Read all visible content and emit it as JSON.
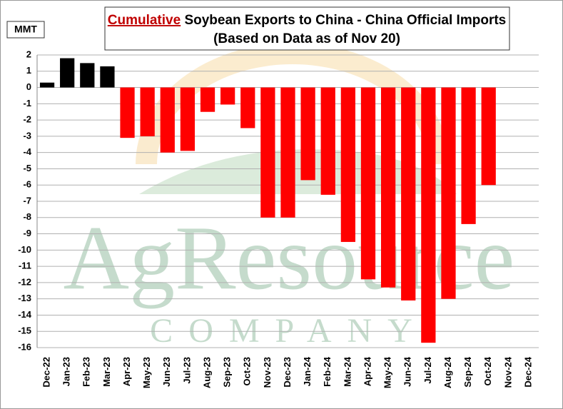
{
  "chart_data": {
    "type": "bar",
    "title_highlight": "Cumulative",
    "title": "Soybean Exports to China - China Official Imports",
    "subtitle": "(Based on Data as of Nov 20)",
    "y_label": "MMT",
    "watermark": "AgResource",
    "watermark_sub": "COMPANY",
    "categories": [
      "Dec-22",
      "Jan-23",
      "Feb-23",
      "Mar-23",
      "Apr-23",
      "May-23",
      "Jun-23",
      "Jul-23",
      "Aug-23",
      "Sep-23",
      "Oct-23",
      "Nov-23",
      "Dec-23",
      "Jan-24",
      "Feb-24",
      "Mar-24",
      "Apr-24",
      "May-24",
      "Jun-24",
      "Jul-24",
      "Aug-24",
      "Sep-24",
      "Oct-24",
      "Nov-24",
      "Dec-24"
    ],
    "values": [
      0.3,
      1.8,
      1.5,
      1.3,
      -3.1,
      -3.0,
      -4.0,
      -3.9,
      -1.5,
      -1.05,
      -2.5,
      -8.0,
      -8.0,
      -5.7,
      -6.6,
      -9.5,
      -11.8,
      -12.3,
      -13.1,
      -15.7,
      -13.0,
      -8.4,
      -6.0,
      null,
      null
    ],
    "colors": {
      "positive": "#000000",
      "negative": "#ff0000"
    },
    "ylim": [
      -16,
      2
    ],
    "yticks": [
      2,
      1,
      0,
      -1,
      -2,
      -3,
      -4,
      -5,
      -6,
      -7,
      -8,
      -9,
      -10,
      -11,
      -12,
      -13,
      -14,
      -15,
      -16
    ],
    "grid": true
  }
}
